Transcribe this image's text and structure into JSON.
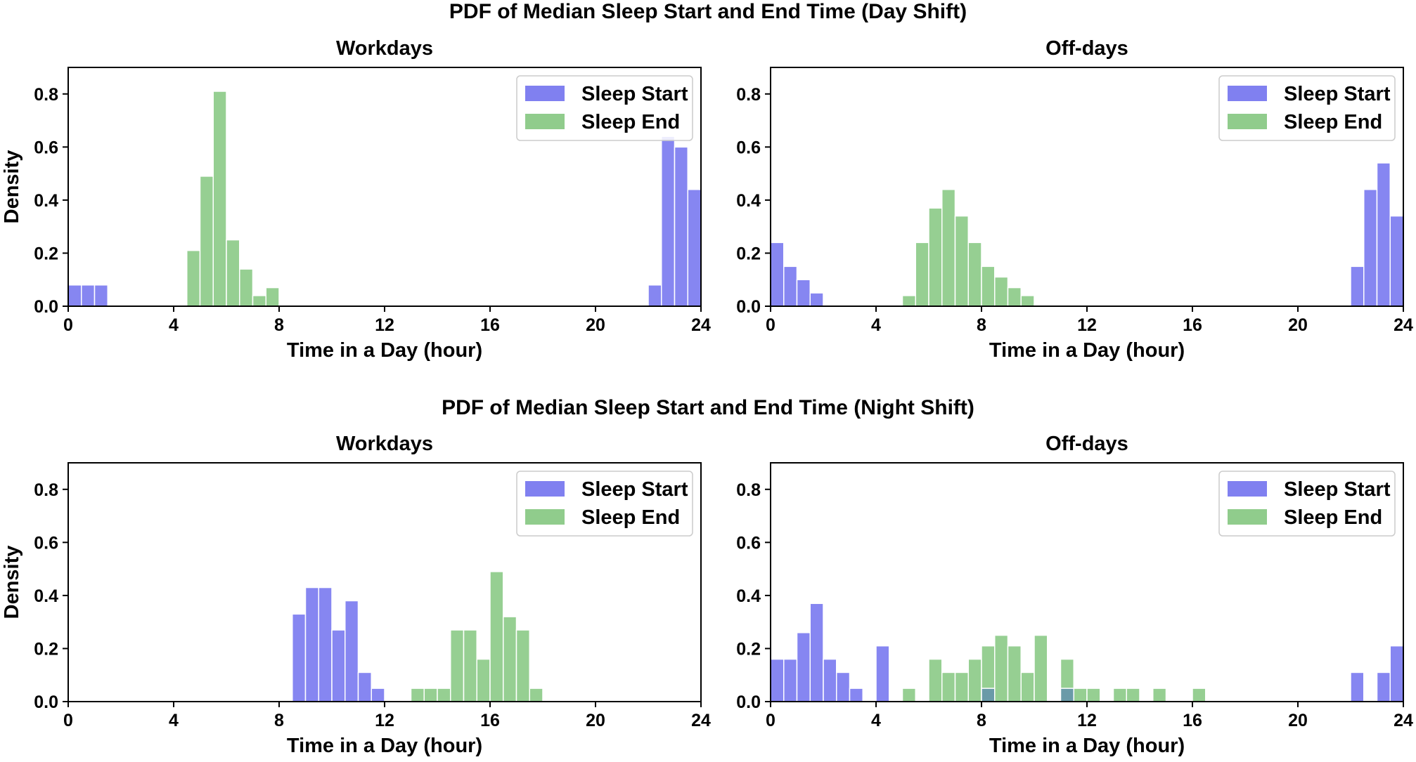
{
  "figure": {
    "title_top": "PDF of Median Sleep Start and End Time (Day Shift)",
    "title_bottom": "PDF of Median Sleep Start and End Time (Night Shift)"
  },
  "colors": {
    "sleep_start": "#8080f0",
    "sleep_end": "#90cc8c",
    "overlap": "#6a9aa8"
  },
  "chart_data": [
    {
      "type": "bar",
      "group": "Day Shift",
      "title": "Workdays",
      "xlabel": "Time in a Day (hour)",
      "ylabel": "Density",
      "xlim": [
        0,
        24
      ],
      "ylim": [
        0,
        0.9
      ],
      "xticks": [
        0,
        4,
        8,
        12,
        16,
        20,
        24
      ],
      "yticks": [
        0.0,
        0.2,
        0.4,
        0.6,
        0.8
      ],
      "bin_width": 0.5,
      "legend": "top-right",
      "series": [
        {
          "name": "Sleep Start",
          "bins": [
            [
              0,
              0.08
            ],
            [
              0.5,
              0.08
            ],
            [
              1,
              0.08
            ],
            [
              22,
              0.08
            ],
            [
              22.5,
              0.64
            ],
            [
              23,
              0.6
            ],
            [
              23.5,
              0.44
            ]
          ]
        },
        {
          "name": "Sleep End",
          "bins": [
            [
              4.5,
              0.21
            ],
            [
              5,
              0.49
            ],
            [
              5.5,
              0.81
            ],
            [
              6,
              0.25
            ],
            [
              6.5,
              0.14
            ],
            [
              7,
              0.04
            ],
            [
              7.5,
              0.07
            ]
          ]
        }
      ]
    },
    {
      "type": "bar",
      "group": "Day Shift",
      "title": "Off-days",
      "xlabel": "Time in a Day (hour)",
      "ylabel": "",
      "xlim": [
        0,
        24
      ],
      "ylim": [
        0,
        0.9
      ],
      "xticks": [
        0,
        4,
        8,
        12,
        16,
        20,
        24
      ],
      "yticks": [
        0.0,
        0.2,
        0.4,
        0.6,
        0.8
      ],
      "bin_width": 0.5,
      "legend": "top-right",
      "series": [
        {
          "name": "Sleep Start",
          "bins": [
            [
              0,
              0.24
            ],
            [
              0.5,
              0.15
            ],
            [
              1,
              0.1
            ],
            [
              1.5,
              0.05
            ],
            [
              22,
              0.15
            ],
            [
              22.5,
              0.44
            ],
            [
              23,
              0.54
            ],
            [
              23.5,
              0.34
            ]
          ]
        },
        {
          "name": "Sleep End",
          "bins": [
            [
              5,
              0.04
            ],
            [
              5.5,
              0.24
            ],
            [
              6,
              0.37
            ],
            [
              6.5,
              0.44
            ],
            [
              7,
              0.34
            ],
            [
              7.5,
              0.24
            ],
            [
              8,
              0.15
            ],
            [
              8.5,
              0.11
            ],
            [
              9,
              0.07
            ],
            [
              9.5,
              0.04
            ]
          ]
        }
      ]
    },
    {
      "type": "bar",
      "group": "Night Shift",
      "title": "Workdays",
      "xlabel": "Time in a Day (hour)",
      "ylabel": "Density",
      "xlim": [
        0,
        24
      ],
      "ylim": [
        0,
        0.9
      ],
      "xticks": [
        0,
        4,
        8,
        12,
        16,
        20,
        24
      ],
      "yticks": [
        0.0,
        0.2,
        0.4,
        0.6,
        0.8
      ],
      "bin_width": 0.5,
      "legend": "top-right",
      "series": [
        {
          "name": "Sleep Start",
          "bins": [
            [
              8.5,
              0.33
            ],
            [
              9,
              0.43
            ],
            [
              9.5,
              0.43
            ],
            [
              10,
              0.27
            ],
            [
              10.5,
              0.38
            ],
            [
              11,
              0.11
            ],
            [
              11.5,
              0.05
            ]
          ]
        },
        {
          "name": "Sleep End",
          "bins": [
            [
              13,
              0.05
            ],
            [
              13.5,
              0.05
            ],
            [
              14,
              0.05
            ],
            [
              14.5,
              0.27
            ],
            [
              15,
              0.27
            ],
            [
              15.5,
              0.16
            ],
            [
              16,
              0.49
            ],
            [
              16.5,
              0.32
            ],
            [
              17,
              0.27
            ],
            [
              17.5,
              0.05
            ]
          ]
        }
      ]
    },
    {
      "type": "bar",
      "group": "Night Shift",
      "title": "Off-days",
      "xlabel": "Time in a Day (hour)",
      "ylabel": "",
      "xlim": [
        0,
        24
      ],
      "ylim": [
        0,
        0.9
      ],
      "xticks": [
        0,
        4,
        8,
        12,
        16,
        20,
        24
      ],
      "yticks": [
        0.0,
        0.2,
        0.4,
        0.6,
        0.8
      ],
      "bin_width": 0.5,
      "legend": "top-right",
      "series": [
        {
          "name": "Sleep Start",
          "bins": [
            [
              0,
              0.16
            ],
            [
              0.5,
              0.16
            ],
            [
              1,
              0.26
            ],
            [
              1.5,
              0.37
            ],
            [
              2,
              0.16
            ],
            [
              2.5,
              0.11
            ],
            [
              3,
              0.05
            ],
            [
              4,
              0.21
            ],
            [
              8,
              0.05
            ],
            [
              11,
              0.05
            ],
            [
              22,
              0.11
            ],
            [
              23,
              0.11
            ],
            [
              23.5,
              0.21
            ]
          ]
        },
        {
          "name": "Sleep End",
          "bins": [
            [
              5,
              0.05
            ],
            [
              6,
              0.16
            ],
            [
              6.5,
              0.11
            ],
            [
              7,
              0.11
            ],
            [
              7.5,
              0.16
            ],
            [
              8,
              0.21
            ],
            [
              8.5,
              0.25
            ],
            [
              9,
              0.21
            ],
            [
              9.5,
              0.11
            ],
            [
              10,
              0.25
            ],
            [
              11,
              0.16
            ],
            [
              11.5,
              0.05
            ],
            [
              12,
              0.05
            ],
            [
              13,
              0.05
            ],
            [
              13.5,
              0.05
            ],
            [
              14.5,
              0.05
            ],
            [
              16,
              0.05
            ]
          ]
        }
      ]
    }
  ]
}
